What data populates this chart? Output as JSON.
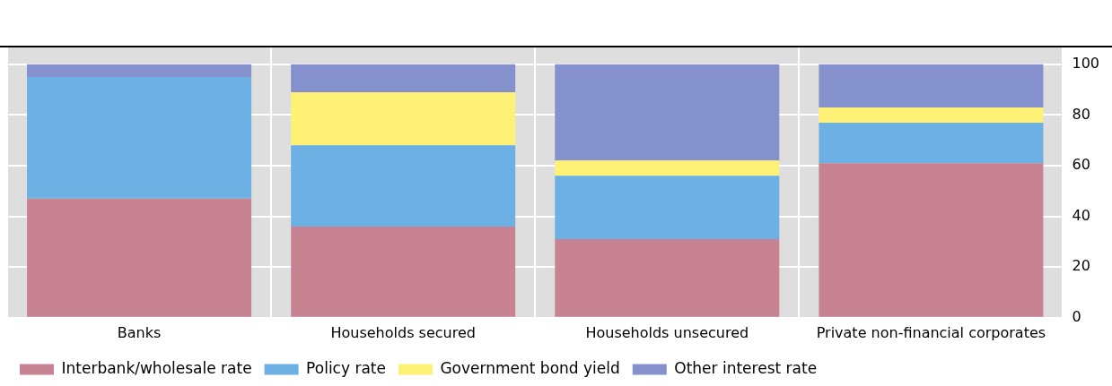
{
  "chart_data": {
    "type": "bar",
    "stacked": true,
    "categories": [
      "Banks",
      "Households secured",
      "Households unsecured",
      "Private non-financial corporates"
    ],
    "series": [
      {
        "name": "Interbank/wholesale rate",
        "color": "#c88393",
        "values": [
          47,
          36,
          31,
          61
        ]
      },
      {
        "name": "Policy rate",
        "color": "#6cb0e4",
        "values": [
          48,
          32,
          25,
          16
        ]
      },
      {
        "name": "Government bond yield",
        "color": "#fff176",
        "values": [
          0,
          21,
          6,
          6
        ]
      },
      {
        "name": "Other interest rate",
        "color": "#8591cc",
        "values": [
          5,
          11,
          38,
          17
        ]
      }
    ],
    "ylim": [
      0,
      107
    ],
    "yticks": [
      0,
      20,
      40,
      60,
      80,
      100
    ],
    "grid": true,
    "legend": "bottom"
  }
}
